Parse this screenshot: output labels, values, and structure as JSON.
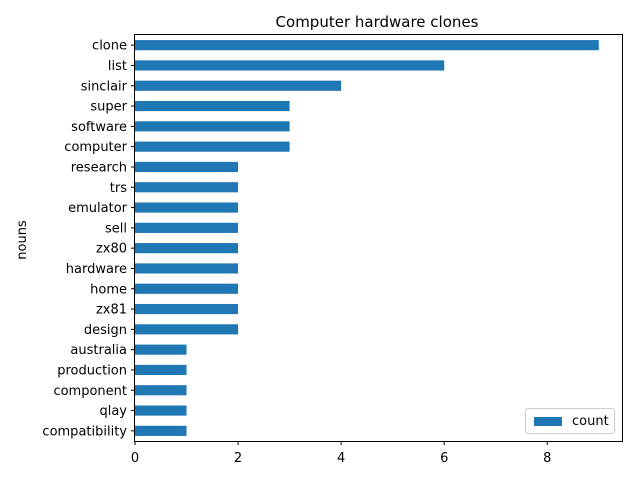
{
  "chart_data": {
    "type": "bar",
    "orientation": "horizontal",
    "title": "Computer hardware clones",
    "xlabel": "",
    "ylabel": "nouns",
    "xlim": [
      0,
      9.45
    ],
    "xticks": [
      0,
      2,
      4,
      6,
      8
    ],
    "grid": false,
    "legend": "bottom-right",
    "bar_color": "#1f77b4",
    "categories": [
      "clone",
      "list",
      "sinclair",
      "super",
      "software",
      "computer",
      "research",
      "trs",
      "emulator",
      "sell",
      "zx80",
      "hardware",
      "home",
      "zx81",
      "design",
      "australia",
      "production",
      "component",
      "qlay",
      "compatibility"
    ],
    "series": [
      {
        "name": "count",
        "values": [
          9,
          6,
          4,
          3,
          3,
          3,
          2,
          2,
          2,
          2,
          2,
          2,
          2,
          2,
          2,
          1,
          1,
          1,
          1,
          1
        ]
      }
    ]
  }
}
